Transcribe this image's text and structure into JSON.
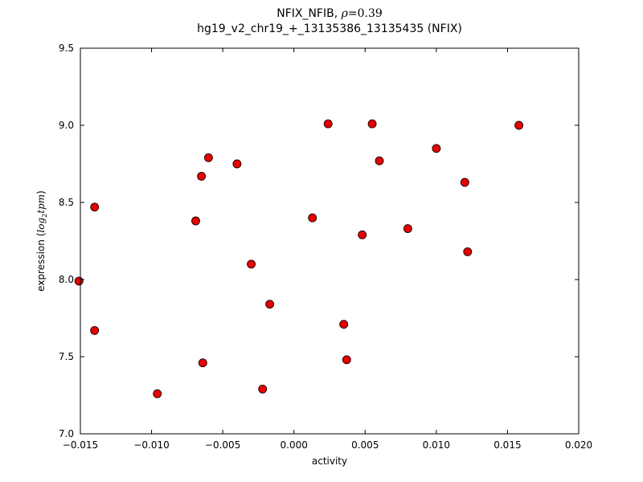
{
  "figure": {
    "title": {
      "line1_prefix": "NFIX_NFIB, ",
      "rho_symbol": "ρ",
      "rho_value": "=0.39",
      "line2": "hg19_v2_chr19_+_13135386_13135435 (NFIX)"
    }
  },
  "chart_data": {
    "type": "scatter",
    "title": "NFIX_NFIB, ρ=0.39\nhg19_v2_chr19_+_13135386_13135435 (NFIX)",
    "xlabel": "activity",
    "ylabel": "expression (log2 tpm)",
    "ylabel_parts": {
      "prefix": "expression (",
      "log": "log",
      "sub": "2",
      "word": "tpm",
      "suffix": ")"
    },
    "xlim": [
      -0.015,
      0.02
    ],
    "ylim": [
      7.0,
      9.5
    ],
    "xticks": [
      -0.015,
      -0.01,
      -0.005,
      0.0,
      0.005,
      0.01,
      0.015,
      0.02
    ],
    "xtick_labels": [
      "−0.015",
      "−0.010",
      "−0.005",
      "0.000",
      "0.005",
      "0.010",
      "0.015",
      "0.020"
    ],
    "yticks": [
      7.0,
      7.5,
      8.0,
      8.5,
      9.0,
      9.5
    ],
    "ytick_labels": [
      "7.0",
      "7.5",
      "8.0",
      "8.5",
      "9.0",
      "9.5"
    ],
    "grid": false,
    "legend": null,
    "marker": {
      "shape": "circle",
      "fill": "#e60000",
      "edge": "#1a0000",
      "radius": 5
    },
    "axis_color": "#000000",
    "points": [
      [
        -0.0151,
        7.99
      ],
      [
        -0.014,
        8.47
      ],
      [
        -0.014,
        7.67
      ],
      [
        -0.0096,
        7.26
      ],
      [
        -0.0069,
        8.38
      ],
      [
        -0.0065,
        8.67
      ],
      [
        -0.0064,
        7.46
      ],
      [
        -0.006,
        8.79
      ],
      [
        -0.004,
        8.75
      ],
      [
        -0.003,
        8.1
      ],
      [
        -0.0022,
        7.29
      ],
      [
        -0.0017,
        7.84
      ],
      [
        0.0013,
        8.4
      ],
      [
        0.0024,
        9.01
      ],
      [
        0.0035,
        7.71
      ],
      [
        0.0037,
        7.48
      ],
      [
        0.0048,
        8.29
      ],
      [
        0.0055,
        9.01
      ],
      [
        0.006,
        8.77
      ],
      [
        0.008,
        8.33
      ],
      [
        0.01,
        8.85
      ],
      [
        0.012,
        8.63
      ],
      [
        0.0122,
        8.18
      ],
      [
        0.0158,
        9.0
      ]
    ]
  }
}
